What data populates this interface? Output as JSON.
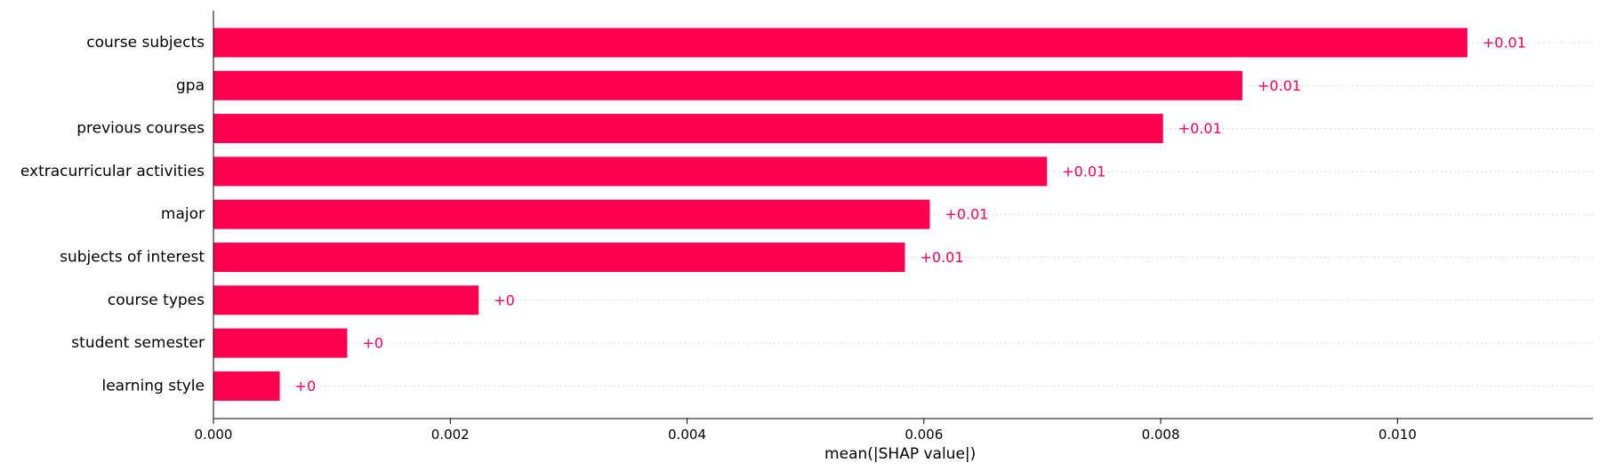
{
  "chart_data": {
    "type": "bar",
    "orientation": "horizontal",
    "title": "",
    "xlabel": "mean(|SHAP value|)",
    "ylabel": "",
    "xlim": [
      0,
      0.01165
    ],
    "xticks": [
      "0.000",
      "0.002",
      "0.004",
      "0.006",
      "0.008",
      "0.010"
    ],
    "xtick_values": [
      0,
      0.002,
      0.004,
      0.006,
      0.008,
      0.01
    ],
    "grid": "dotted row guides",
    "bar_color": "#ff0051",
    "categories": [
      "course subjects",
      "gpa",
      "previous courses",
      "extracurricular activities",
      "major",
      "subjects of interest",
      "course types",
      "student semester",
      "learning style"
    ],
    "values": [
      0.01059,
      0.00869,
      0.00802,
      0.00704,
      0.00605,
      0.00584,
      0.00224,
      0.00113,
      0.00056
    ],
    "value_labels": [
      "+0.01",
      "+0.01",
      "+0.01",
      "+0.01",
      "+0.01",
      "+0.01",
      "+0",
      "+0",
      "+0"
    ]
  }
}
